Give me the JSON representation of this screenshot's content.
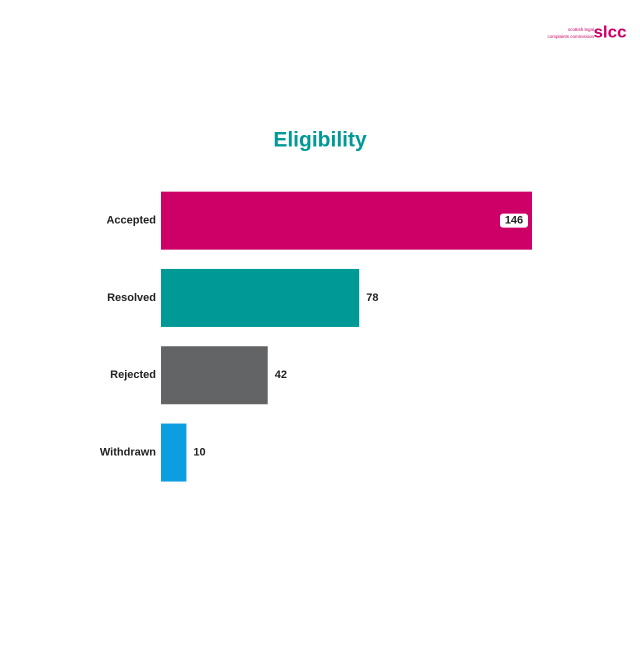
{
  "logo": {
    "mark": "slcc",
    "line1": "scottish legal",
    "line2": "complaints commission"
  },
  "chart_data": {
    "type": "bar",
    "orientation": "horizontal",
    "title": "Eligibility",
    "categories": [
      "Accepted",
      "Resolved",
      "Rejected",
      "Withdrawn"
    ],
    "values": [
      146,
      78,
      42,
      10
    ],
    "colors": [
      "#cc0066",
      "#009a96",
      "#636466",
      "#0c9ee0"
    ]
  }
}
